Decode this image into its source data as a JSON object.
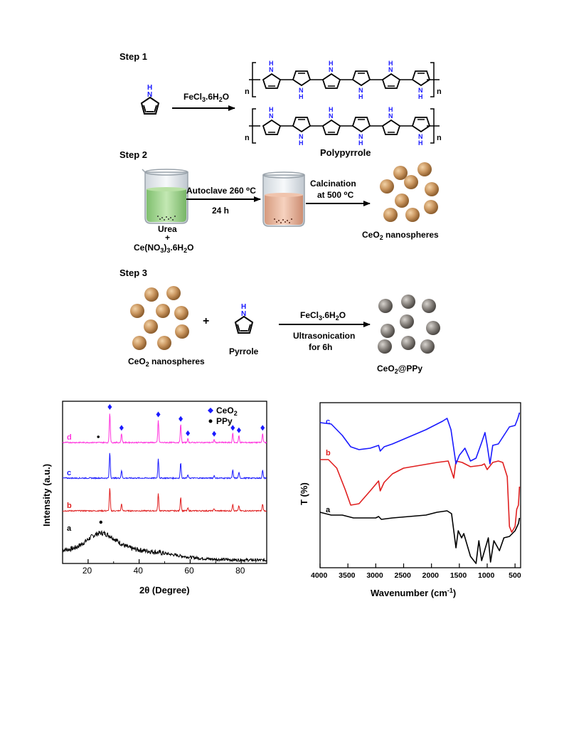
{
  "scheme": {
    "step1": {
      "label": "Step 1",
      "reagent": "FeCl3.6H2O",
      "repeat_n": "n",
      "nh": "NH",
      "n": "N",
      "h": "H",
      "product": "Polypyrrole"
    },
    "step2": {
      "label": "Step 2",
      "autoclave": "Autoclave 260 ⁰C",
      "time": "24 h",
      "calcination": "Calcination",
      "calc_temp": "at 500 ⁰C",
      "beaker1_line1": "Urea",
      "beaker1_line2": "+",
      "beaker1_line3": "Ce(NO3)3.6H2O",
      "product": "CeO2 nanospheres"
    },
    "step3": {
      "label": "Step 3",
      "reactant1": "CeO2 nanospheres",
      "plus": "+",
      "reactant2": "Pyrrole",
      "reagent": "FeCl3.6H2O",
      "condition1": "Ultrasonication",
      "condition2": "for 6h",
      "product": "CeO2@PPy"
    },
    "colors": {
      "nanosphere": "#c9955e",
      "nanosphere_coated": "#8a8580",
      "urea_solution": "#9cd28a",
      "product_solution": "#e6b49a",
      "pyrrole_nh": "#1a1aff"
    }
  },
  "chart_data": [
    {
      "type": "line",
      "xlabel": "2θ (Degree)",
      "ylabel": "Intensity (a.u.)",
      "xlim": [
        10,
        90
      ],
      "xticks": [
        20,
        40,
        60,
        80
      ],
      "legend": [
        {
          "marker": "diamond",
          "name": "CeO2",
          "color": "#1a1aff"
        },
        {
          "marker": "circle",
          "name": "PPy",
          "color": "#000000"
        }
      ],
      "legend_position": "top-right",
      "series": [
        {
          "name": "a",
          "color": "#000000",
          "type": "amorphous",
          "broad_peak_x": 25
        },
        {
          "name": "b",
          "color": "#e02020",
          "peaks": [
            28.5,
            33.1,
            47.5,
            56.3,
            59.1,
            69.4,
            76.7,
            79.1,
            88.4
          ]
        },
        {
          "name": "c",
          "color": "#1a1aff",
          "peaks": [
            28.5,
            33.1,
            47.5,
            56.3,
            59.1,
            69.4,
            76.7,
            79.1,
            88.4
          ]
        },
        {
          "name": "d",
          "color": "#ff33dd",
          "peaks": [
            28.5,
            33.1,
            47.5,
            56.3,
            59.1,
            69.4,
            76.7,
            79.1,
            88.4
          ]
        }
      ],
      "ceo2_markers_x": [
        28.5,
        33.1,
        47.5,
        56.3,
        59.1,
        69.4,
        76.7,
        79.1,
        88.4
      ],
      "ppy_markers_x": [
        24,
        25
      ]
    },
    {
      "type": "line",
      "xlabel": "Wavenumber (cm⁻¹)",
      "ylabel": "T (%)",
      "xlim": [
        4000,
        400
      ],
      "xticks": [
        4000,
        3500,
        3000,
        2500,
        2000,
        1500,
        1000,
        500
      ],
      "series": [
        {
          "name": "a",
          "color": "#000000"
        },
        {
          "name": "b",
          "color": "#e02020"
        },
        {
          "name": "c",
          "color": "#1a1aff"
        }
      ]
    }
  ]
}
